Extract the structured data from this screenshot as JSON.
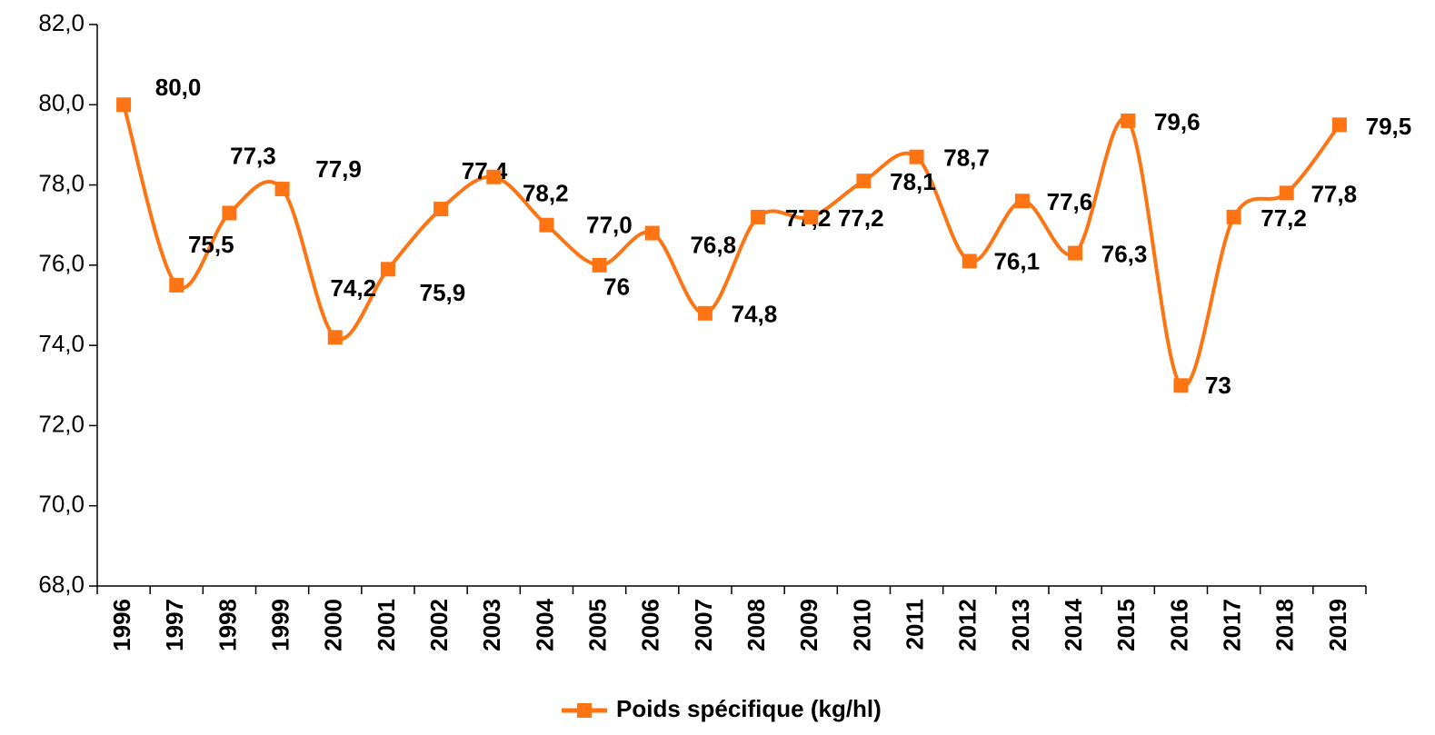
{
  "chart_data": {
    "type": "line",
    "categories": [
      "1996",
      "1997",
      "1998",
      "1999",
      "2000",
      "2001",
      "2002",
      "2003",
      "2004",
      "2005",
      "2006",
      "2007",
      "2008",
      "2009",
      "2010",
      "2011",
      "2012",
      "2013",
      "2014",
      "2015",
      "2016",
      "2017",
      "2018",
      "2019"
    ],
    "series": [
      {
        "name": "Poids spécifique (kg/hl)",
        "color": "#ff7412",
        "values": [
          80.0,
          75.5,
          77.3,
          77.9,
          74.2,
          75.9,
          77.4,
          78.2,
          77.0,
          76,
          76.8,
          74.8,
          77.2,
          77.2,
          78.1,
          78.7,
          76.1,
          77.6,
          76.3,
          79.6,
          73,
          77.2,
          77.8,
          79.5
        ],
        "value_labels": [
          "80,0",
          "75,5",
          "77,3",
          "77,9",
          "74,2",
          "75,9",
          "77,4",
          "78,2",
          "77,0",
          "76",
          "76,8",
          "74,8",
          "77,2",
          "77,2",
          "78,1",
          "78,7",
          "76,1",
          "77,6",
          "76,3",
          "79,6",
          "73",
          "77,2",
          "77,8",
          "79,5"
        ]
      }
    ],
    "ylim": [
      68,
      82
    ],
    "yticks": [
      {
        "value": 68,
        "label": "68,0"
      },
      {
        "value": 70,
        "label": "70,0"
      },
      {
        "value": 72,
        "label": "72,0"
      },
      {
        "value": 74,
        "label": "74,0"
      },
      {
        "value": 76,
        "label": "76,0"
      },
      {
        "value": 78,
        "label": "78,0"
      },
      {
        "value": 80,
        "label": "80,0"
      },
      {
        "value": 82,
        "label": "82,0"
      }
    ],
    "legend": "bottom"
  }
}
